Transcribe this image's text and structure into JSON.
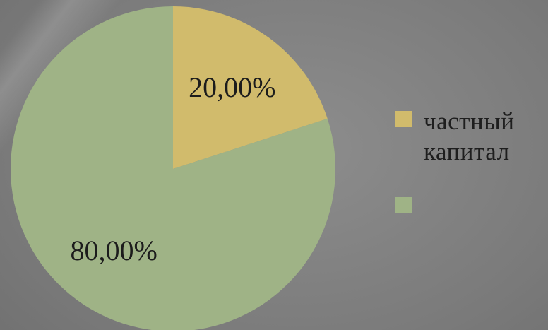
{
  "chart_data": {
    "type": "pie",
    "title": "",
    "slices": [
      {
        "label": "частный капитал",
        "value": 20,
        "display": "20,00%",
        "color": "#d1bb6c"
      },
      {
        "label": "",
        "value": 80,
        "display": "80,00%",
        "color": "#9fb386"
      }
    ],
    "start_angle_deg": 0,
    "direction": "clockwise",
    "legend_position": "right"
  }
}
